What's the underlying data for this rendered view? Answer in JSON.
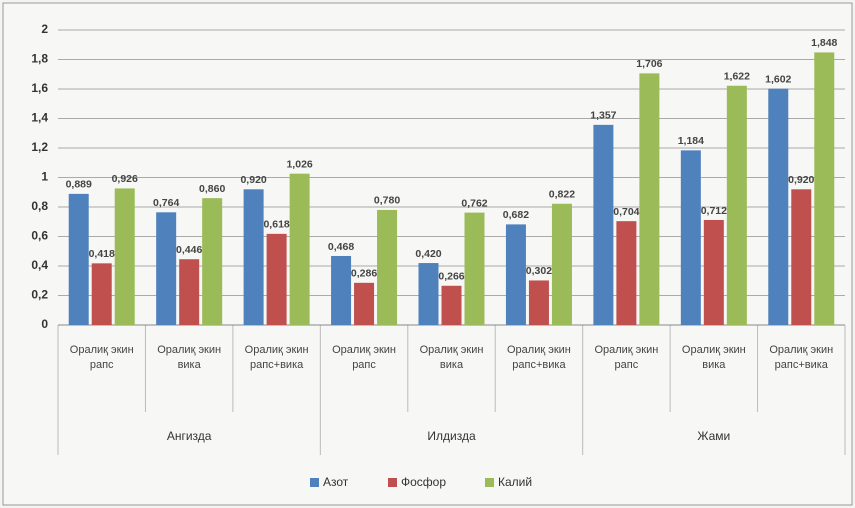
{
  "chart_data": {
    "type": "bar",
    "categories": [
      "Оралиқ экин рапс",
      "Оралиқ экин вика",
      "Оралиқ экин рапс+вика",
      "Оралиқ экин рапс",
      "Оралиқ экин вика",
      "Оралиқ экин рапс+вика",
      "Оралиқ экин рапс",
      "Оралиқ экин вика",
      "Оралиқ экин рапс+вика"
    ],
    "groups": [
      "Ангизда",
      "Илдизда",
      "Жами"
    ],
    "series": [
      {
        "name": "Азот",
        "color": "#4f81bd",
        "values": [
          0.889,
          0.764,
          0.92,
          0.468,
          0.42,
          0.682,
          1.357,
          1.184,
          1.602
        ],
        "value_labels": [
          "0,889",
          "0,764",
          "0,920",
          "0,468",
          "0,420",
          "0,682",
          "1,357",
          "1,184",
          "1,602"
        ]
      },
      {
        "name": "Фосфор",
        "color": "#c0504d",
        "values": [
          0.418,
          0.446,
          0.618,
          0.286,
          0.266,
          0.302,
          0.704,
          0.712,
          0.92
        ],
        "value_labels": [
          "0,418",
          "0,446",
          "0,618",
          "0,286",
          "0,266",
          "0,302",
          "0,704",
          "0,712",
          "0,920"
        ]
      },
      {
        "name": "Калий",
        "color": "#9bbb59",
        "values": [
          0.926,
          0.86,
          1.026,
          0.78,
          0.762,
          0.822,
          1.706,
          1.622,
          1.848
        ],
        "value_labels": [
          "0,926",
          "0,860",
          "1,026",
          "0,780",
          "0,762",
          "0,822",
          "1,706",
          "1,622",
          "1,848"
        ]
      }
    ],
    "ylim": [
      0,
      2
    ],
    "yticks": [
      0,
      {
        "value": 0.2,
        "label": "0,2"
      },
      {
        "value": 0.4,
        "label": "0,4"
      },
      {
        "value": 0.6,
        "label": "0,6"
      },
      {
        "value": 0.8,
        "label": "0,8"
      },
      1,
      {
        "value": 1.2,
        "label": "1,2"
      },
      {
        "value": 1.4,
        "label": "1,4"
      },
      {
        "value": 1.6,
        "label": "1,6"
      },
      {
        "value": 1.8,
        "label": "1,8"
      },
      2
    ],
    "grid": true,
    "legend": "bottom"
  }
}
